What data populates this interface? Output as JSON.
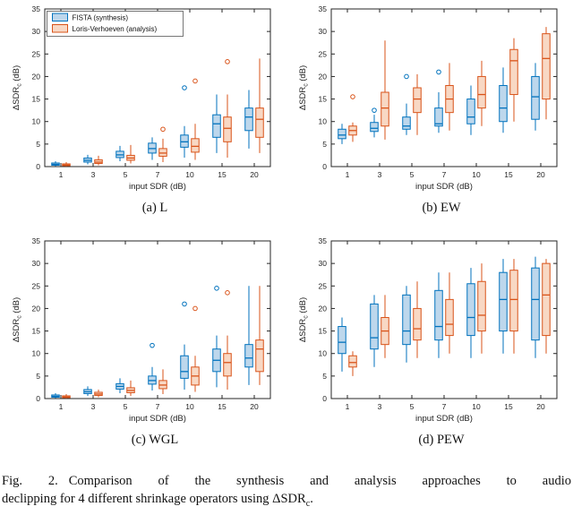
{
  "figure": {
    "caption": {
      "label": "Fig. 2.",
      "line1_rest": "Comparison of the synthesis and analysis approaches to audio",
      "line2_before_metric": "declipping for 4 different shrinkage operators using ",
      "metric": "ΔSDR",
      "metric_sub": "c",
      "period": "."
    }
  },
  "chart_data": [
    {
      "type": "box",
      "caption": "(a) L",
      "xlabel": "input SDR (dB)",
      "ylabel": {
        "main": "ΔSDR",
        "sub": "c",
        "unit": "(dB)"
      },
      "ylim": [
        0,
        35
      ],
      "yticks": [
        0,
        5,
        10,
        15,
        20,
        25,
        30,
        35
      ],
      "categories": [
        "1",
        "3",
        "5",
        "7",
        "10",
        "15",
        "20"
      ],
      "legend": true,
      "legend_position": "top-left",
      "grid": false,
      "series": [
        {
          "name": "FISTA (synthesis)",
          "color": "#0072bd",
          "fill": "#bdd7ec",
          "boxes": [
            {
              "lo": 0.1,
              "q1": 0.3,
              "med": 0.5,
              "q3": 0.8,
              "hi": 1.2,
              "out": []
            },
            {
              "lo": 0.5,
              "q1": 1.0,
              "med": 1.4,
              "q3": 1.9,
              "hi": 2.6,
              "out": []
            },
            {
              "lo": 1.2,
              "q1": 2.0,
              "med": 2.6,
              "q3": 3.4,
              "hi": 4.6,
              "out": []
            },
            {
              "lo": 1.5,
              "q1": 3.0,
              "med": 4.0,
              "q3": 5.2,
              "hi": 6.5,
              "out": []
            },
            {
              "lo": 2.0,
              "q1": 4.3,
              "med": 5.5,
              "q3": 7.0,
              "hi": 9.0,
              "out": [
                17.5
              ]
            },
            {
              "lo": 3.0,
              "q1": 6.5,
              "med": 9.5,
              "q3": 11.5,
              "hi": 16.0,
              "out": []
            },
            {
              "lo": 4.0,
              "q1": 8.0,
              "med": 11.0,
              "q3": 13.0,
              "hi": 17.0,
              "out": []
            }
          ]
        },
        {
          "name": "Loris-Verhoeven (analysis)",
          "color": "#d95319",
          "fill": "#f8d8c4",
          "boxes": [
            {
              "lo": 0.05,
              "q1": 0.2,
              "med": 0.35,
              "q3": 0.6,
              "hi": 1.0,
              "out": []
            },
            {
              "lo": 0.3,
              "q1": 0.7,
              "med": 1.0,
              "q3": 1.5,
              "hi": 2.4,
              "out": []
            },
            {
              "lo": 0.7,
              "q1": 1.4,
              "med": 1.9,
              "q3": 2.5,
              "hi": 4.8,
              "out": []
            },
            {
              "lo": 1.0,
              "q1": 2.3,
              "med": 3.0,
              "q3": 4.0,
              "hi": 6.2,
              "out": [
                8.3
              ]
            },
            {
              "lo": 1.5,
              "q1": 3.2,
              "med": 4.5,
              "q3": 6.2,
              "hi": 9.5,
              "out": [
                19.0
              ]
            },
            {
              "lo": 2.0,
              "q1": 5.5,
              "med": 8.5,
              "q3": 11.0,
              "hi": 16.0,
              "out": [
                23.3
              ]
            },
            {
              "lo": 3.0,
              "q1": 6.5,
              "med": 10.5,
              "q3": 13.0,
              "hi": 24.0,
              "out": []
            }
          ]
        }
      ]
    },
    {
      "type": "box",
      "caption": "(b) EW",
      "xlabel": "input SDR (dB)",
      "ylabel": {
        "main": "ΔSDR",
        "sub": "c",
        "unit": "(dB)"
      },
      "ylim": [
        0,
        35
      ],
      "yticks": [
        0,
        5,
        10,
        15,
        20,
        25,
        30,
        35
      ],
      "categories": [
        "1",
        "3",
        "5",
        "7",
        "10",
        "15",
        "20"
      ],
      "legend": false,
      "grid": false,
      "series": [
        {
          "name": "FISTA (synthesis)",
          "color": "#0072bd",
          "fill": "#bdd7ec",
          "boxes": [
            {
              "lo": 5.0,
              "q1": 6.2,
              "med": 7.0,
              "q3": 8.3,
              "hi": 9.5,
              "out": []
            },
            {
              "lo": 6.5,
              "q1": 7.8,
              "med": 8.5,
              "q3": 9.8,
              "hi": 11.5,
              "out": [
                12.5
              ]
            },
            {
              "lo": 7.0,
              "q1": 8.3,
              "med": 9.0,
              "q3": 11.0,
              "hi": 14.0,
              "out": [
                20.0
              ]
            },
            {
              "lo": 7.5,
              "q1": 9.0,
              "med": 9.5,
              "q3": 13.0,
              "hi": 16.5,
              "out": [
                21.0
              ]
            },
            {
              "lo": 7.0,
              "q1": 9.5,
              "med": 11.0,
              "q3": 15.0,
              "hi": 18.0,
              "out": []
            },
            {
              "lo": 7.5,
              "q1": 10.0,
              "med": 13.0,
              "q3": 18.0,
              "hi": 22.0,
              "out": []
            },
            {
              "lo": 8.0,
              "q1": 10.5,
              "med": 15.5,
              "q3": 20.0,
              "hi": 23.0,
              "out": []
            }
          ]
        },
        {
          "name": "Loris-Verhoeven (analysis)",
          "color": "#d95319",
          "fill": "#f8d8c4",
          "boxes": [
            {
              "lo": 5.5,
              "q1": 7.0,
              "med": 8.0,
              "q3": 9.0,
              "hi": 9.8,
              "out": [
                15.5
              ]
            },
            {
              "lo": 6.0,
              "q1": 9.0,
              "med": 13.0,
              "q3": 16.5,
              "hi": 28.0,
              "out": []
            },
            {
              "lo": 7.0,
              "q1": 12.0,
              "med": 15.0,
              "q3": 17.5,
              "hi": 20.5,
              "out": []
            },
            {
              "lo": 8.0,
              "q1": 12.0,
              "med": 15.0,
              "q3": 18.0,
              "hi": 23.0,
              "out": []
            },
            {
              "lo": 9.0,
              "q1": 13.0,
              "med": 16.0,
              "q3": 20.0,
              "hi": 23.5,
              "out": []
            },
            {
              "lo": 10.0,
              "q1": 16.0,
              "med": 23.5,
              "q3": 26.0,
              "hi": 28.5,
              "out": []
            },
            {
              "lo": 10.5,
              "q1": 15.0,
              "med": 24.0,
              "q3": 29.5,
              "hi": 31.0,
              "out": []
            }
          ]
        }
      ]
    },
    {
      "type": "box",
      "caption": "(c) WGL",
      "xlabel": "input SDR (dB)",
      "ylabel": {
        "main": "ΔSDR",
        "sub": "c",
        "unit": "(dB)"
      },
      "ylim": [
        0,
        35
      ],
      "yticks": [
        0,
        5,
        10,
        15,
        20,
        25,
        30,
        35
      ],
      "categories": [
        "1",
        "3",
        "5",
        "7",
        "10",
        "15",
        "20"
      ],
      "legend": false,
      "grid": false,
      "series": [
        {
          "name": "FISTA (synthesis)",
          "color": "#0072bd",
          "fill": "#bdd7ec",
          "boxes": [
            {
              "lo": 0.1,
              "q1": 0.3,
              "med": 0.5,
              "q3": 0.8,
              "hi": 1.2,
              "out": []
            },
            {
              "lo": 0.6,
              "q1": 1.1,
              "med": 1.5,
              "q3": 2.0,
              "hi": 2.7,
              "out": []
            },
            {
              "lo": 1.2,
              "q1": 2.1,
              "med": 2.7,
              "q3": 3.3,
              "hi": 4.5,
              "out": []
            },
            {
              "lo": 1.8,
              "q1": 3.2,
              "med": 4.0,
              "q3": 5.0,
              "hi": 7.0,
              "out": [
                11.8
              ]
            },
            {
              "lo": 2.0,
              "q1": 4.5,
              "med": 6.0,
              "q3": 9.5,
              "hi": 12.0,
              "out": [
                21.0
              ]
            },
            {
              "lo": 2.5,
              "q1": 6.0,
              "med": 8.5,
              "q3": 11.0,
              "hi": 14.0,
              "out": [
                24.5
              ]
            },
            {
              "lo": 3.0,
              "q1": 7.0,
              "med": 9.0,
              "q3": 12.0,
              "hi": 25.0,
              "out": []
            }
          ]
        },
        {
          "name": "Loris-Verhoeven (analysis)",
          "color": "#d95319",
          "fill": "#f8d8c4",
          "boxes": [
            {
              "lo": 0.05,
              "q1": 0.2,
              "med": 0.35,
              "q3": 0.6,
              "hi": 1.0,
              "out": []
            },
            {
              "lo": 0.3,
              "q1": 0.7,
              "med": 1.0,
              "q3": 1.4,
              "hi": 2.0,
              "out": []
            },
            {
              "lo": 0.6,
              "q1": 1.3,
              "med": 1.8,
              "q3": 2.4,
              "hi": 4.0,
              "out": []
            },
            {
              "lo": 1.0,
              "q1": 2.2,
              "med": 3.0,
              "q3": 4.0,
              "hi": 6.5,
              "out": []
            },
            {
              "lo": 1.5,
              "q1": 3.0,
              "med": 5.0,
              "q3": 7.0,
              "hi": 9.5,
              "out": [
                20.0
              ]
            },
            {
              "lo": 2.0,
              "q1": 5.0,
              "med": 8.0,
              "q3": 10.0,
              "hi": 14.0,
              "out": [
                23.5
              ]
            },
            {
              "lo": 3.0,
              "q1": 6.0,
              "med": 11.0,
              "q3": 13.0,
              "hi": 25.0,
              "out": []
            }
          ]
        }
      ]
    },
    {
      "type": "box",
      "caption": "(d) PEW",
      "xlabel": "input SDR (dB)",
      "ylabel": {
        "main": "ΔSDR",
        "sub": "c",
        "unit": "(dB)"
      },
      "ylim": [
        0,
        35
      ],
      "yticks": [
        0,
        5,
        10,
        15,
        20,
        25,
        30,
        35
      ],
      "categories": [
        "1",
        "3",
        "5",
        "7",
        "10",
        "15",
        "20"
      ],
      "legend": false,
      "grid": false,
      "series": [
        {
          "name": "FISTA (synthesis)",
          "color": "#0072bd",
          "fill": "#bdd7ec",
          "boxes": [
            {
              "lo": 6.0,
              "q1": 10.0,
              "med": 12.5,
              "q3": 16.0,
              "hi": 18.0,
              "out": []
            },
            {
              "lo": 7.0,
              "q1": 11.0,
              "med": 13.5,
              "q3": 21.0,
              "hi": 23.0,
              "out": []
            },
            {
              "lo": 8.0,
              "q1": 12.0,
              "med": 15.0,
              "q3": 23.0,
              "hi": 25.0,
              "out": []
            },
            {
              "lo": 9.0,
              "q1": 13.0,
              "med": 16.0,
              "q3": 24.0,
              "hi": 28.0,
              "out": []
            },
            {
              "lo": 9.0,
              "q1": 14.0,
              "med": 18.0,
              "q3": 25.5,
              "hi": 29.0,
              "out": []
            },
            {
              "lo": 10.0,
              "q1": 15.0,
              "med": 22.0,
              "q3": 28.0,
              "hi": 31.0,
              "out": []
            },
            {
              "lo": 9.0,
              "q1": 13.0,
              "med": 22.0,
              "q3": 29.0,
              "hi": 31.5,
              "out": []
            }
          ]
        },
        {
          "name": "Loris-Verhoeven (analysis)",
          "color": "#d95319",
          "fill": "#f8d8c4",
          "boxes": [
            {
              "lo": 5.0,
              "q1": 7.0,
              "med": 8.0,
              "q3": 9.5,
              "hi": 10.5,
              "out": []
            },
            {
              "lo": 9.0,
              "q1": 12.0,
              "med": 15.0,
              "q3": 18.0,
              "hi": 23.0,
              "out": []
            },
            {
              "lo": 9.0,
              "q1": 13.0,
              "med": 15.5,
              "q3": 20.0,
              "hi": 26.0,
              "out": []
            },
            {
              "lo": 10.0,
              "q1": 14.0,
              "med": 16.5,
              "q3": 22.0,
              "hi": 28.0,
              "out": []
            },
            {
              "lo": 10.0,
              "q1": 15.0,
              "med": 18.5,
              "q3": 26.0,
              "hi": 30.0,
              "out": []
            },
            {
              "lo": 10.0,
              "q1": 15.0,
              "med": 22.0,
              "q3": 28.5,
              "hi": 31.0,
              "out": []
            },
            {
              "lo": 10.0,
              "q1": 14.0,
              "med": 23.0,
              "q3": 30.0,
              "hi": 31.0,
              "out": []
            }
          ]
        }
      ]
    }
  ]
}
